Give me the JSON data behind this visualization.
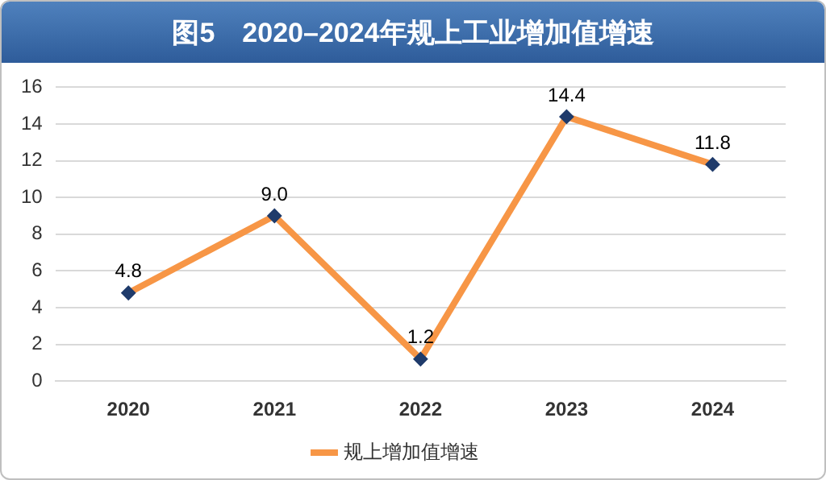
{
  "chart_data": {
    "type": "line",
    "title": "图5　2020–2024年规上工业增加值增速",
    "categories": [
      "2020",
      "2021",
      "2022",
      "2023",
      "2024"
    ],
    "series": [
      {
        "name": "规上增加值增速",
        "color": "#f79646",
        "values": [
          4.8,
          9.0,
          1.2,
          14.4,
          11.8
        ],
        "value_labels": [
          "4.8",
          "9.0",
          "1.2",
          "14.4",
          "11.8"
        ]
      }
    ],
    "ylim": [
      0,
      16
    ],
    "yticks": [
      0,
      2,
      4,
      6,
      8,
      10,
      12,
      14,
      16
    ],
    "grid": "y",
    "legend": "bottom",
    "marker": "diamond",
    "line_style": "solid"
  }
}
